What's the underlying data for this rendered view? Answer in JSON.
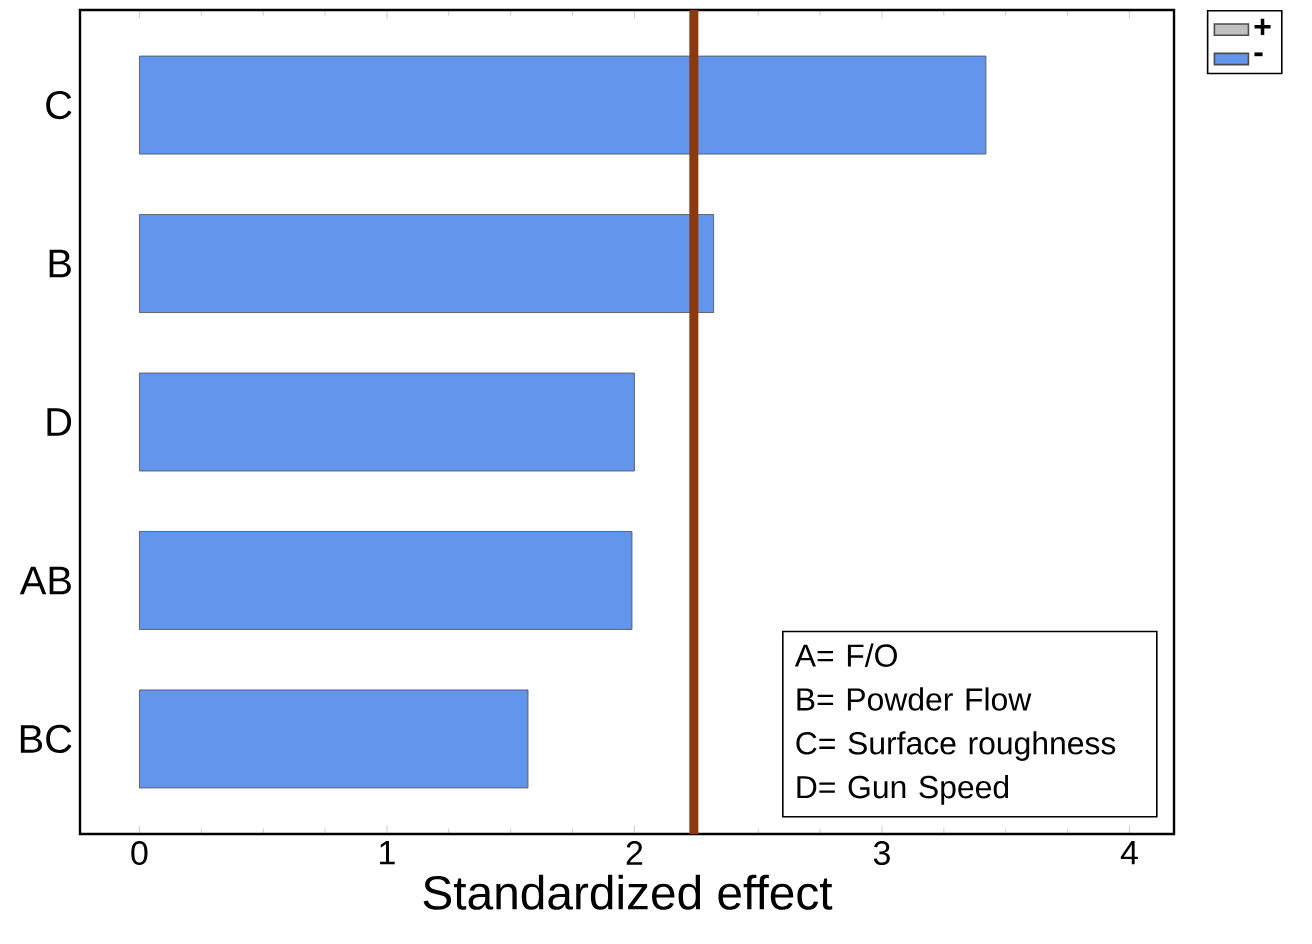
{
  "chart_data": {
    "type": "bar",
    "orientation": "horizontal",
    "xlabel": "Standardized effect",
    "categories": [
      "C",
      "B",
      "D",
      "AB",
      "BC"
    ],
    "series": [
      {
        "name": "+",
        "color": "#c0c0c0",
        "values": [
          null,
          null,
          null,
          null,
          null
        ]
      },
      {
        "name": "-",
        "color": "#6495ed",
        "values": [
          3.42,
          2.32,
          2.0,
          1.99,
          1.57
        ]
      }
    ],
    "xlim": [
      -0.24,
      4.18
    ],
    "xticks": [
      0,
      1,
      2,
      3,
      4
    ],
    "legend": "top right",
    "grid": false,
    "ref_lines": [
      {
        "axis": "x",
        "value": 2.24,
        "color": "#8b3a0f"
      }
    ],
    "annotations": [
      "A= F/O",
      "B= Powder Flow",
      "C= Surface roughness",
      "D= Gun Speed"
    ]
  }
}
